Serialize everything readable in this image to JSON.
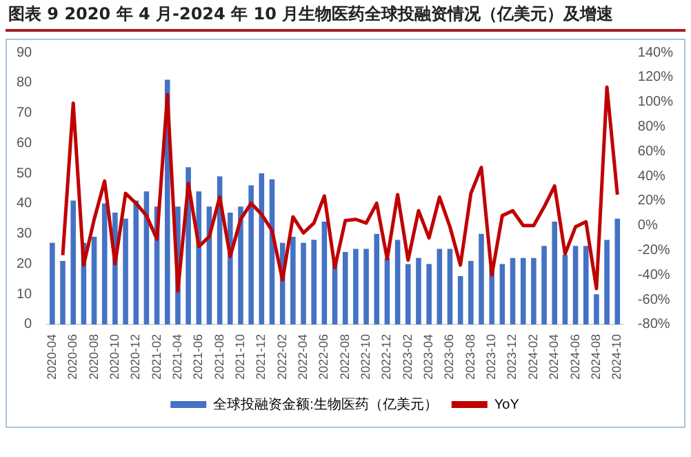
{
  "chart_data": {
    "type": "bar",
    "title": "图表 9 2020 年 4 月-2024 年 10 月生物医药全球投融资情况（亿美元）及增速",
    "categories": [
      "2020-04",
      null,
      "2020-06",
      null,
      "2020-08",
      null,
      "2020-10",
      null,
      "2020-12",
      null,
      "2021-02",
      null,
      "2021-04",
      null,
      "2021-06",
      null,
      "2021-08",
      null,
      "2021-10",
      null,
      "2021-12",
      null,
      "2022-02",
      null,
      "2022-04",
      null,
      "2022-06",
      null,
      "2022-08",
      null,
      "2022-10",
      null,
      "2022-12",
      null,
      "2023-02",
      null,
      "2023-04",
      null,
      "2023-06",
      null,
      "2023-08",
      null,
      "2023-10",
      null,
      "2023-12",
      null,
      "2024-02",
      null,
      "2024-04",
      null,
      "2024-06",
      null,
      "2024-08",
      null,
      "2024-10"
    ],
    "series": [
      {
        "name": "全球投融资金额:生物医药（亿美元）",
        "color": "#4472c4",
        "values": [
          27,
          21,
          41,
          27,
          29,
          40,
          37,
          35,
          41,
          44,
          39,
          81,
          39,
          52,
          44,
          39,
          49,
          37,
          39,
          46,
          50,
          48,
          27,
          29,
          27,
          28,
          34,
          21,
          24,
          25,
          25,
          30,
          22,
          28,
          20,
          22,
          20,
          25,
          25,
          16,
          21,
          30,
          19,
          20,
          22,
          22,
          22,
          26,
          34,
          23,
          26,
          26,
          10,
          28,
          35
        ]
      },
      {
        "name": "YoY",
        "type": "line",
        "axis": "y2",
        "color": "#c00000",
        "marker": "none",
        "values": [
          null,
          -24,
          99,
          -32,
          5,
          36,
          -31,
          26,
          18,
          8,
          -11,
          106,
          -53,
          34,
          -17,
          -9,
          23,
          -25,
          5,
          18,
          9,
          -4,
          -44,
          7,
          -6,
          2,
          24,
          -34,
          4,
          5,
          2,
          18,
          -27,
          25,
          -28,
          12,
          -10,
          23,
          -1,
          -32,
          26,
          47,
          -40,
          8,
          12,
          0,
          0,
          15,
          32,
          -23,
          -1,
          3,
          -51,
          112,
          25
        ]
      }
    ],
    "ylim": [
      0,
      90
    ],
    "yticks": [
      0,
      10,
      20,
      30,
      40,
      50,
      60,
      70,
      80,
      90
    ],
    "y2lim": [
      -80,
      140
    ],
    "y2ticks": [
      {
        "value": -80,
        "label": "-80%"
      },
      {
        "value": -60,
        "label": "-60%"
      },
      {
        "value": -40,
        "label": "-40%"
      },
      {
        "value": -20,
        "label": "-20%"
      },
      {
        "value": 0,
        "label": "0%"
      },
      {
        "value": 20,
        "label": "20%"
      },
      {
        "value": 40,
        "label": "40%"
      },
      {
        "value": 60,
        "label": "60%"
      },
      {
        "value": 80,
        "label": "80%"
      },
      {
        "value": 100,
        "label": "100%"
      },
      {
        "value": 120,
        "label": "120%"
      },
      {
        "value": 140,
        "label": "140%"
      }
    ],
    "grid": false,
    "legend": "bottom"
  }
}
